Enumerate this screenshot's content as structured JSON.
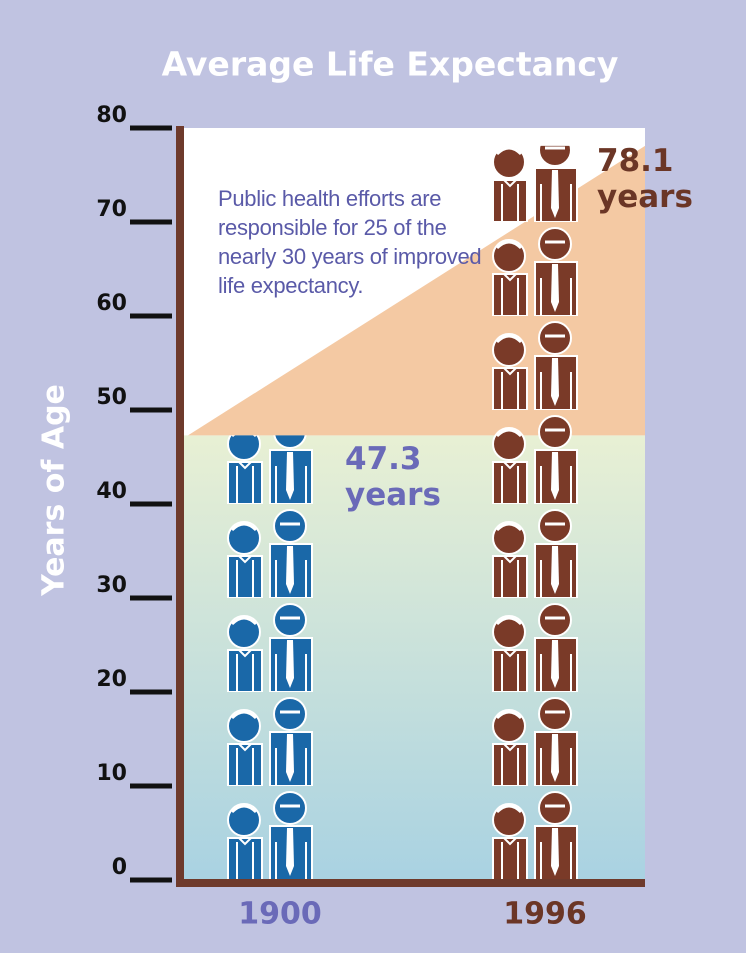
{
  "chart_data": {
    "type": "bar",
    "title": "Average Life Expectancy",
    "y_label": "Years of Age",
    "categories": [
      "1900",
      "1996"
    ],
    "values": [
      47.3,
      78.1
    ],
    "value_labels": [
      "47.3 years",
      "78.1 years"
    ],
    "colors": [
      "#1a68a8",
      "#7a3a28"
    ],
    "ylim": [
      0,
      80
    ],
    "yticks": [
      0,
      10,
      20,
      30,
      40,
      50,
      60,
      70,
      80
    ],
    "annotation": "Public health efforts are responsible for 25 of the nearly 30 years of improved life expectancy."
  }
}
